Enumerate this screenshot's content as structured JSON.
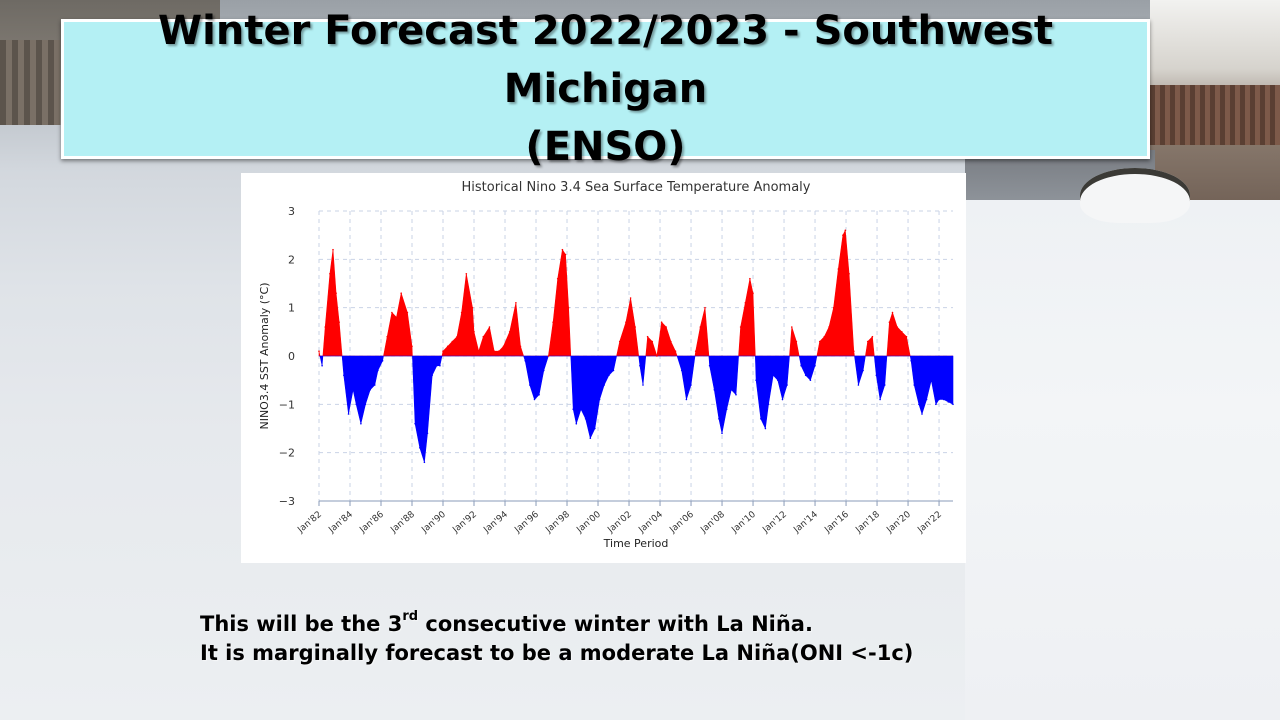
{
  "slide": {
    "title_line1": "Winter Forecast 2022/2023 - Southwest Michigan",
    "title_line2": "(ENSO)",
    "caption_line1_part1": "This will be the 3",
    "caption_line1_sup": "rd",
    "caption_line1_part2": " consecutive winter with La Niña.",
    "caption_line2": "It is marginally forecast to be a moderate La Niña(ONI <-1c)"
  },
  "chart_data": {
    "type": "area",
    "title": "Historical Nino 3.4 Sea Surface Temperature Anomaly",
    "xlabel": "Time Period",
    "ylabel": "NINO3.4 SST Anomaly (°C)",
    "ylim": [
      -3,
      3
    ],
    "yticks": [
      3,
      2,
      1,
      0,
      -1,
      -2,
      -3
    ],
    "xlim": [
      1982,
      2022.9
    ],
    "xtick_labels": [
      "Jan'82",
      "Jan'84",
      "Jan'86",
      "Jan'88",
      "Jan'90",
      "Jan'92",
      "Jan'94",
      "Jan'96",
      "Jan'98",
      "Jan'00",
      "Jan'02",
      "Jan'04",
      "Jan'06",
      "Jan'08",
      "Jan'10",
      "Jan'12",
      "Jan'14",
      "Jan'16",
      "Jan'18",
      "Jan'20",
      "Jan'22"
    ],
    "xtick_years": [
      1982,
      1984,
      1986,
      1988,
      1990,
      1992,
      1994,
      1996,
      1998,
      2000,
      2002,
      2004,
      2006,
      2008,
      2010,
      2012,
      2014,
      2016,
      2018,
      2020,
      2022
    ],
    "grid": true,
    "positive_color": "#ff0000",
    "negative_color": "#0000ff",
    "series": [
      {
        "x": [
          1982.0,
          1982.2,
          1982.4,
          1982.7,
          1982.9,
          1983.1,
          1983.3,
          1983.6,
          1983.9,
          1984.2,
          1984.4,
          1984.7,
          1985.0,
          1985.3,
          1985.6,
          1985.8,
          1986.1,
          1986.4,
          1986.7,
          1987.0,
          1987.3,
          1987.7,
          1988.0,
          1988.2,
          1988.5,
          1988.8,
          1989.0,
          1989.3,
          1989.6,
          1989.8,
          1990.0,
          1990.3,
          1990.6,
          1990.9,
          1991.2,
          1991.5,
          1991.9,
          1992.0,
          1992.3,
          1992.6,
          1993.0,
          1993.3,
          1993.6,
          1993.9,
          1994.3,
          1994.7,
          1995.0,
          1995.3,
          1995.6,
          1995.9,
          1996.2,
          1996.5,
          1996.8,
          1997.1,
          1997.4,
          1997.7,
          1997.9,
          1998.1,
          1998.4,
          1998.6,
          1998.9,
          1999.2,
          1999.5,
          1999.8,
          2000.1,
          2000.4,
          2000.7,
          2001.0,
          2001.4,
          2001.8,
          2002.1,
          2002.4,
          2002.7,
          2002.9,
          2003.2,
          2003.5,
          2003.8,
          2004.1,
          2004.4,
          2004.7,
          2005.0,
          2005.4,
          2005.7,
          2006.0,
          2006.3,
          2006.6,
          2006.9,
          2007.2,
          2007.5,
          2007.8,
          2008.0,
          2008.3,
          2008.6,
          2008.9,
          2009.2,
          2009.5,
          2009.8,
          2010.0,
          2010.2,
          2010.5,
          2010.8,
          2011.0,
          2011.3,
          2011.6,
          2011.9,
          2012.2,
          2012.5,
          2012.8,
          2013.1,
          2013.4,
          2013.7,
          2014.0,
          2014.3,
          2014.6,
          2014.9,
          2015.2,
          2015.5,
          2015.8,
          2015.95,
          2016.2,
          2016.5,
          2016.8,
          2017.1,
          2017.4,
          2017.7,
          2017.95,
          2018.2,
          2018.5,
          2018.8,
          2019.0,
          2019.3,
          2019.6,
          2019.9,
          2020.2,
          2020.4,
          2020.7,
          2020.9,
          2021.2,
          2021.5,
          2021.8,
          2022.0,
          2022.3,
          2022.6,
          2022.9
        ],
        "y": [
          0.1,
          -0.2,
          0.6,
          1.7,
          2.2,
          1.3,
          0.7,
          -0.4,
          -1.2,
          -0.7,
          -1.0,
          -1.4,
          -1.0,
          -0.7,
          -0.6,
          -0.3,
          -0.1,
          0.4,
          0.9,
          0.8,
          1.3,
          0.9,
          0.2,
          -1.4,
          -1.9,
          -2.2,
          -1.6,
          -0.4,
          -0.2,
          -0.2,
          0.1,
          0.2,
          0.3,
          0.4,
          0.9,
          1.7,
          1.0,
          0.5,
          0.1,
          0.4,
          0.6,
          0.1,
          0.1,
          0.2,
          0.5,
          1.1,
          0.2,
          -0.1,
          -0.6,
          -0.9,
          -0.8,
          -0.3,
          0.0,
          0.7,
          1.6,
          2.2,
          2.1,
          1.0,
          -1.1,
          -1.4,
          -1.1,
          -1.3,
          -1.7,
          -1.5,
          -0.9,
          -0.6,
          -0.4,
          -0.3,
          0.3,
          0.7,
          1.2,
          0.6,
          -0.2,
          -0.6,
          0.4,
          0.3,
          0.0,
          0.7,
          0.6,
          0.3,
          0.1,
          -0.3,
          -0.9,
          -0.6,
          0.1,
          0.6,
          1.0,
          -0.2,
          -0.7,
          -1.3,
          -1.6,
          -1.1,
          -0.7,
          -0.8,
          0.6,
          1.1,
          1.6,
          1.3,
          -0.5,
          -1.3,
          -1.5,
          -1.0,
          -0.4,
          -0.5,
          -0.9,
          -0.6,
          0.6,
          0.3,
          -0.2,
          -0.4,
          -0.5,
          -0.2,
          0.3,
          0.4,
          0.6,
          1.0,
          1.8,
          2.5,
          2.6,
          1.7,
          0.1,
          -0.6,
          -0.3,
          0.3,
          0.4,
          -0.4,
          -0.9,
          -0.6,
          0.7,
          0.9,
          0.6,
          0.5,
          0.4,
          -0.1,
          -0.6,
          -1.0,
          -1.2,
          -0.9,
          -0.5,
          -1.0,
          -0.9,
          -0.9,
          -0.95,
          -1.0
        ]
      }
    ]
  }
}
